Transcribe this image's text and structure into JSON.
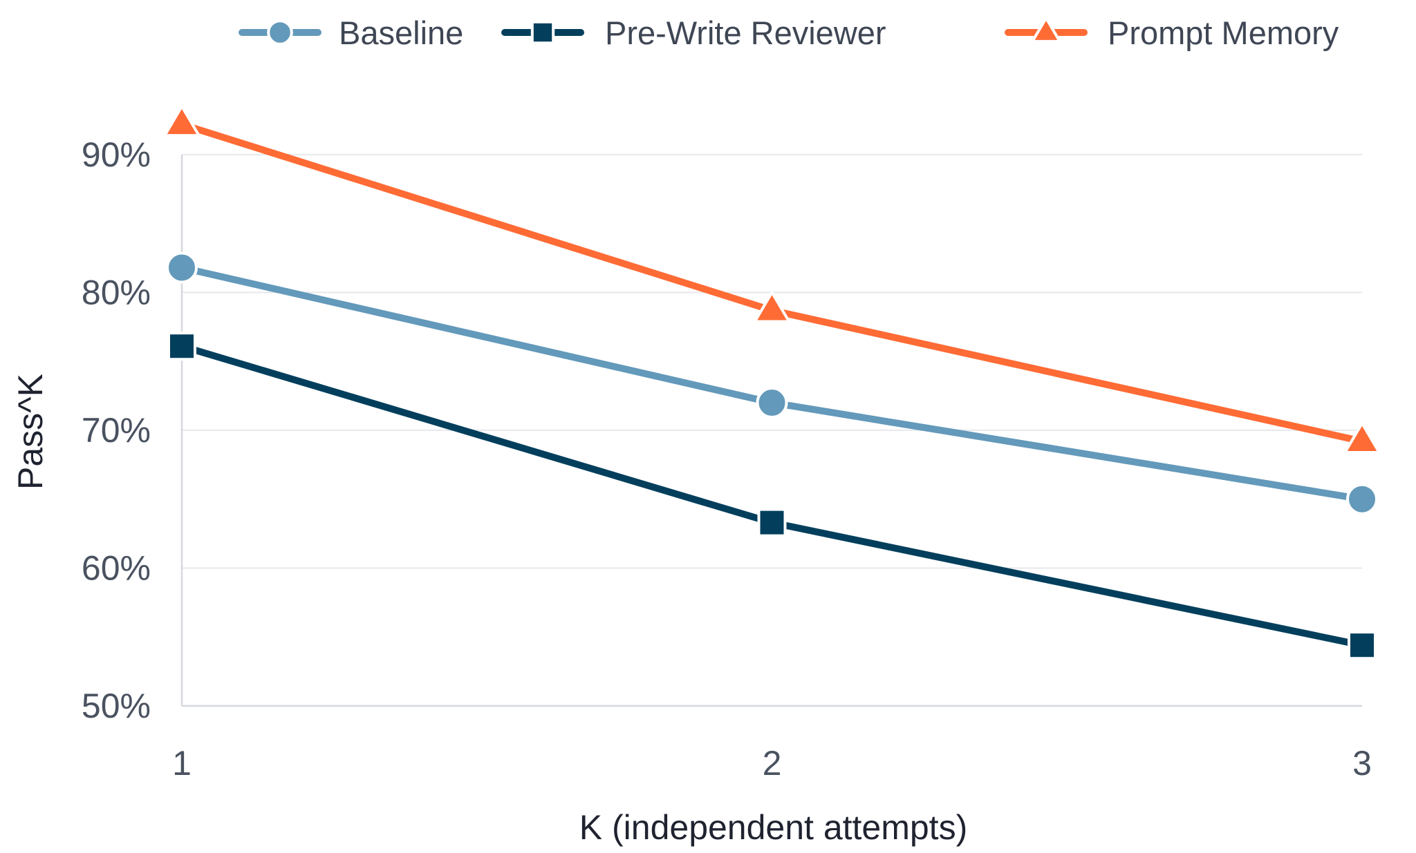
{
  "chart_data": {
    "type": "line",
    "title": "",
    "xlabel": "K (independent attempts)",
    "ylabel": "Pass^K",
    "x": [
      1,
      2,
      3
    ],
    "x_tick_labels": [
      "1",
      "2",
      "3"
    ],
    "ylim": [
      50,
      93
    ],
    "y_ticks": [
      50,
      60,
      70,
      80,
      90
    ],
    "y_tick_labels": [
      "50%",
      "60%",
      "70%",
      "80%",
      "90%"
    ],
    "grid": "horizontal",
    "legend_position": "top",
    "series": [
      {
        "name": "Baseline",
        "values": [
          81.8,
          72.0,
          65.0
        ],
        "color": "#6399ba",
        "marker": "circle"
      },
      {
        "name": "Pre-Write Reviewer",
        "values": [
          76.1,
          63.3,
          54.4
        ],
        "color": "#033f5c",
        "marker": "square"
      },
      {
        "name": "Prompt Memory",
        "values": [
          92.2,
          78.7,
          69.2
        ],
        "color": "#ff6b35",
        "marker": "triangle"
      }
    ]
  }
}
